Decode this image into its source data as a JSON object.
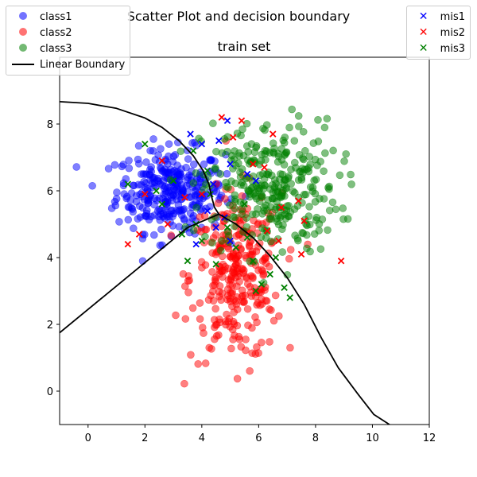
{
  "chart_data": {
    "type": "scatter",
    "title": "Scatter Plot and decision boundary",
    "subtitle": "train set",
    "xlabel": "",
    "ylabel": "",
    "xlim": [
      -1,
      12
    ],
    "ylim": [
      -1,
      10
    ],
    "xticks": [
      0,
      2,
      4,
      6,
      8,
      10,
      12
    ],
    "yticks": [
      0,
      2,
      4,
      6,
      8
    ],
    "grid": false,
    "series": [
      {
        "name": "class1",
        "kind": "points",
        "color": "#0000ff",
        "center": [
          2.9,
          6.0
        ],
        "spread": [
          0.95,
          0.62
        ],
        "count": 320
      },
      {
        "name": "class2",
        "kind": "points",
        "color": "#ff0000",
        "center": [
          5.2,
          3.4
        ],
        "spread": [
          0.8,
          1.25
        ],
        "count": 300
      },
      {
        "name": "class3",
        "kind": "points",
        "color": "#008000",
        "center": [
          6.4,
          6.1
        ],
        "spread": [
          1.2,
          1.0
        ],
        "count": 320
      },
      {
        "name": "mis1",
        "kind": "misclassified",
        "color": "#0000ff",
        "points": [
          [
            3.6,
            7.7
          ],
          [
            4.0,
            7.4
          ],
          [
            4.6,
            7.5
          ],
          [
            4.9,
            8.1
          ],
          [
            4.4,
            6.2
          ],
          [
            5.0,
            6.8
          ],
          [
            5.6,
            6.5
          ],
          [
            5.9,
            6.3
          ],
          [
            4.2,
            5.4
          ],
          [
            4.5,
            4.9
          ],
          [
            4.8,
            5.2
          ],
          [
            3.8,
            4.4
          ],
          [
            5.0,
            4.5
          ]
        ]
      },
      {
        "name": "mis2",
        "kind": "misclassified",
        "color": "#ff0000",
        "points": [
          [
            1.4,
            4.4
          ],
          [
            1.8,
            4.7
          ],
          [
            2.0,
            5.9
          ],
          [
            2.6,
            6.9
          ],
          [
            2.8,
            5.0
          ],
          [
            3.4,
            5.8
          ],
          [
            4.0,
            5.9
          ],
          [
            4.7,
            8.2
          ],
          [
            5.1,
            7.6
          ],
          [
            5.4,
            8.1
          ],
          [
            5.8,
            6.8
          ],
          [
            6.2,
            6.7
          ],
          [
            6.5,
            7.7
          ],
          [
            6.8,
            5.5
          ],
          [
            7.4,
            5.7
          ],
          [
            7.6,
            5.1
          ],
          [
            7.5,
            4.1
          ],
          [
            8.9,
            3.9
          ],
          [
            6.7,
            4.5
          ],
          [
            6.3,
            4.8
          ]
        ]
      },
      {
        "name": "mis3",
        "kind": "misclassified",
        "color": "#008000",
        "points": [
          [
            1.4,
            6.2
          ],
          [
            2.0,
            7.4
          ],
          [
            2.4,
            6.0
          ],
          [
            2.6,
            5.6
          ],
          [
            3.0,
            6.3
          ],
          [
            3.3,
            4.7
          ],
          [
            3.5,
            3.9
          ],
          [
            3.7,
            7.2
          ],
          [
            4.0,
            4.5
          ],
          [
            4.2,
            6.6
          ],
          [
            4.5,
            3.8
          ],
          [
            4.9,
            4.9
          ],
          [
            5.2,
            4.3
          ],
          [
            5.5,
            5.6
          ],
          [
            5.8,
            3.9
          ],
          [
            5.9,
            3.0
          ],
          [
            6.1,
            3.2
          ],
          [
            6.4,
            3.5
          ],
          [
            6.6,
            4.0
          ],
          [
            6.9,
            3.1
          ],
          [
            7.1,
            2.8
          ],
          [
            5.6,
            4.6
          ],
          [
            4.3,
            5.9
          ],
          [
            3.8,
            5.0
          ]
        ]
      },
      {
        "name": "Linear Boundary",
        "kind": "boundary",
        "color": "#000000",
        "segments": [
          [
            [
              -1.0,
              8.67
            ],
            [
              0.0,
              8.62
            ],
            [
              1.0,
              8.47
            ],
            [
              2.0,
              8.18
            ],
            [
              2.6,
              7.9
            ],
            [
              3.2,
              7.5
            ],
            [
              3.7,
              7.05
            ],
            [
              4.05,
              6.6
            ],
            [
              4.25,
              6.2
            ],
            [
              4.35,
              5.8
            ],
            [
              4.45,
              5.5
            ],
            [
              4.6,
              5.3
            ]
          ],
          [
            [
              -1.0,
              1.75
            ],
            [
              0.5,
              2.8
            ],
            [
              2.0,
              3.85
            ],
            [
              3.5,
              4.9
            ],
            [
              4.6,
              5.3
            ]
          ],
          [
            [
              4.6,
              5.3
            ],
            [
              5.2,
              5.0
            ],
            [
              5.8,
              4.6
            ],
            [
              6.4,
              4.05
            ],
            [
              7.0,
              3.4
            ],
            [
              7.6,
              2.6
            ],
            [
              8.2,
              1.6
            ],
            [
              8.8,
              0.7
            ],
            [
              9.5,
              -0.1
            ],
            [
              10.05,
              -0.7
            ],
            [
              10.6,
              -1.0
            ]
          ]
        ]
      }
    ],
    "legend": [
      {
        "placement": "upper-left",
        "entries": [
          "class1",
          "class2",
          "class3",
          "Linear Boundary"
        ]
      },
      {
        "placement": "upper-right",
        "entries": [
          "mis1",
          "mis2",
          "mis3"
        ]
      }
    ]
  }
}
